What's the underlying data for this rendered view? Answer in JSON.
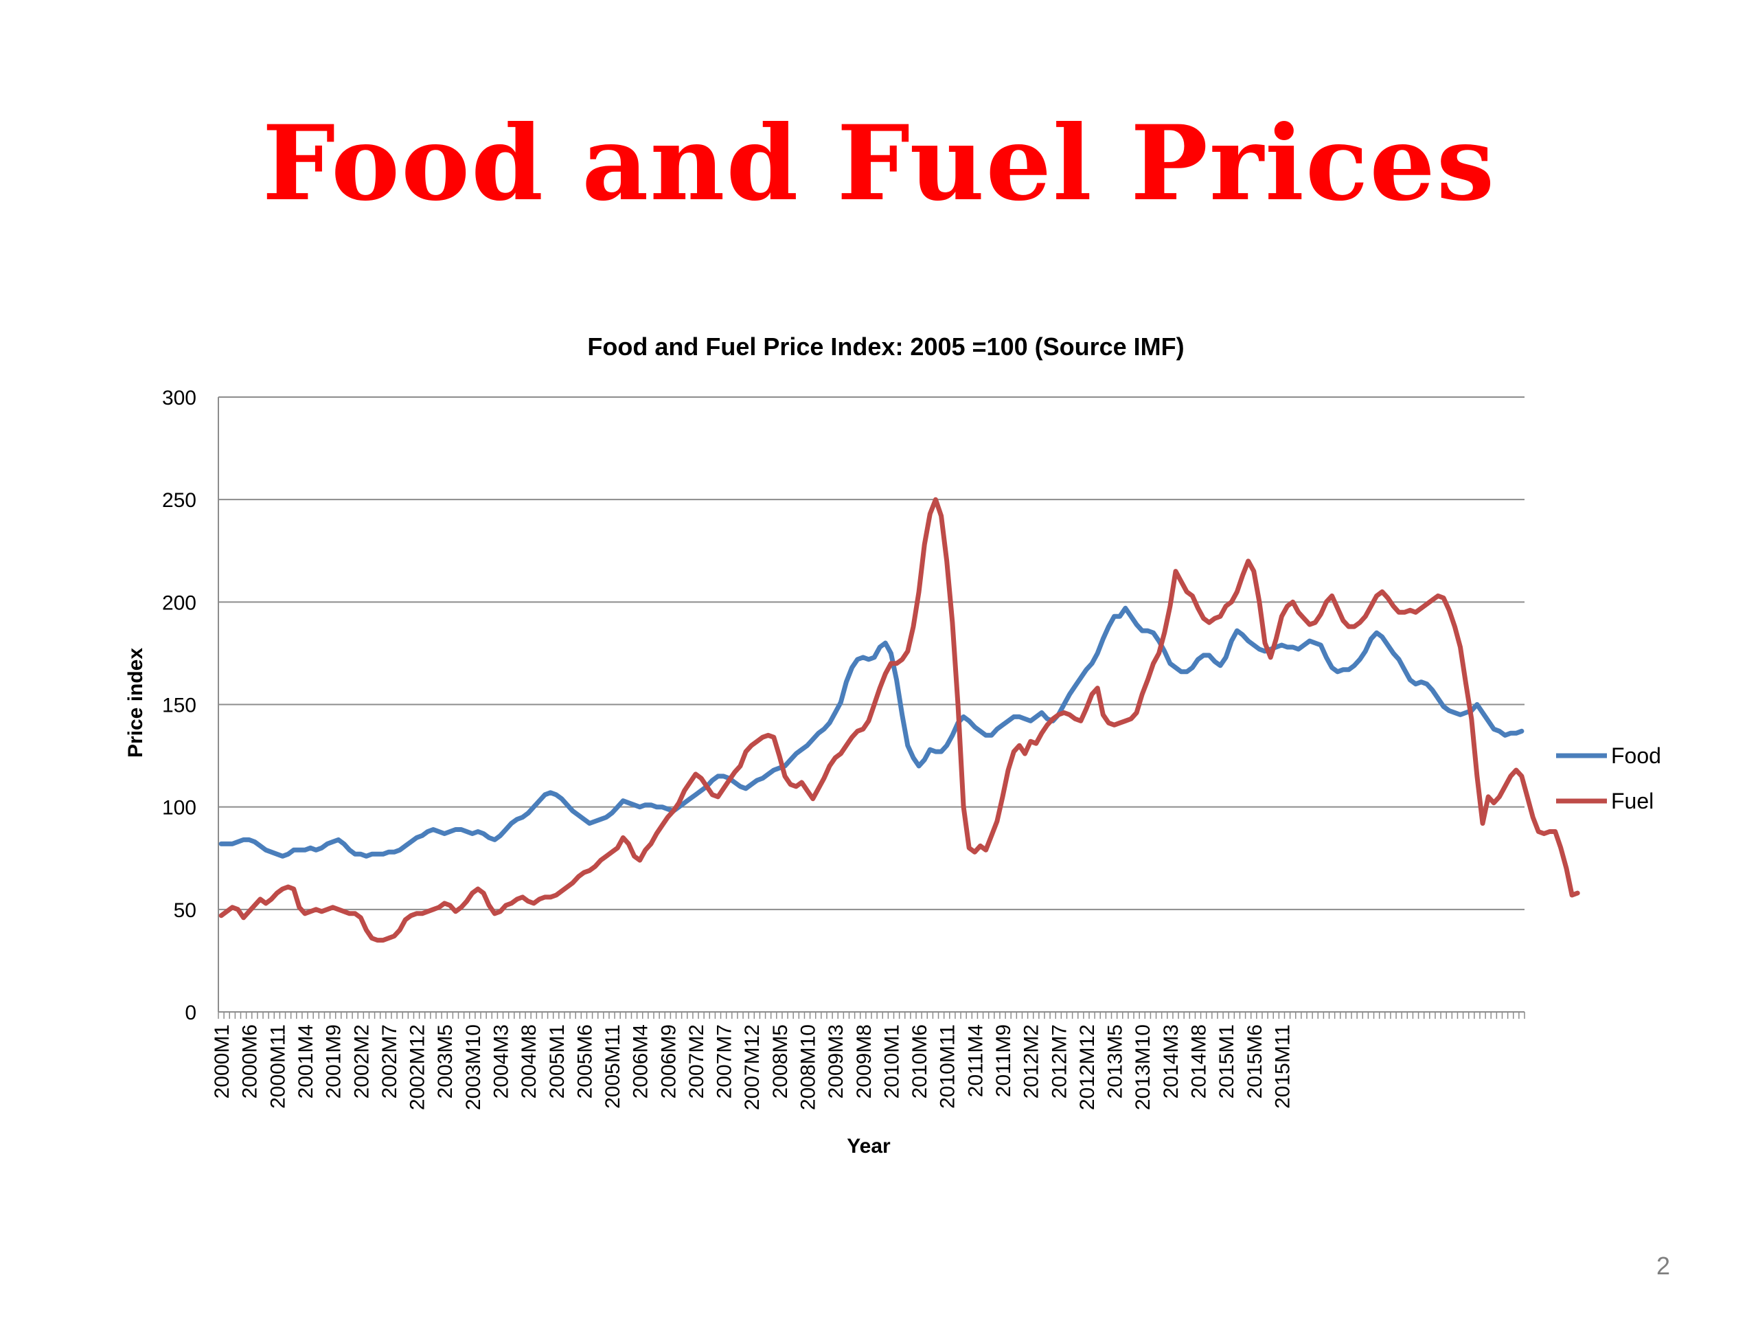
{
  "slide": {
    "title": "Food and Fuel Prices",
    "title_color": "#ff0000",
    "page_number": "2"
  },
  "chart_data": {
    "type": "line",
    "title": "Food and Fuel Price Index: 2005 =100 (Source IMF)",
    "xlabel": "Year",
    "ylabel": "Price index",
    "ylim": [
      0,
      300
    ],
    "yticks": [
      0,
      50,
      100,
      150,
      200,
      250,
      300
    ],
    "grid": true,
    "legend": "right",
    "x_start": "2000M1",
    "x_step_months": 1,
    "x_tick_labels": [
      "2000M1",
      "2000M6",
      "2000M11",
      "2001M4",
      "2001M9",
      "2002M2",
      "2002M7",
      "2002M12",
      "2003M5",
      "2003M10",
      "2004M3",
      "2004M8",
      "2005M1",
      "2005M6",
      "2005M11",
      "2006M4",
      "2006M9",
      "2007M2",
      "2007M7",
      "2007M12",
      "2008M5",
      "2008M10",
      "2009M3",
      "2009M8",
      "2010M1",
      "2010M6",
      "2010M11",
      "2011M4",
      "2011M9",
      "2012M2",
      "2012M7",
      "2012M12",
      "2013M5",
      "2013M10",
      "2014M3",
      "2014M8",
      "2015M1",
      "2015M6",
      "2015M11"
    ],
    "series": [
      {
        "name": "Food",
        "color": "#4a7ebb",
        "values": [
          82,
          82,
          82,
          83,
          84,
          84,
          83,
          81,
          79,
          78,
          77,
          76,
          77,
          79,
          79,
          79,
          80,
          79,
          80,
          82,
          83,
          84,
          82,
          79,
          77,
          77,
          76,
          77,
          77,
          77,
          78,
          78,
          79,
          81,
          83,
          85,
          86,
          88,
          89,
          88,
          87,
          88,
          89,
          89,
          88,
          87,
          88,
          87,
          85,
          84,
          86,
          89,
          92,
          94,
          95,
          97,
          100,
          103,
          106,
          107,
          106,
          104,
          101,
          98,
          96,
          94,
          92,
          93,
          94,
          95,
          97,
          100,
          103,
          102,
          101,
          100,
          101,
          101,
          100,
          100,
          99,
          98,
          100,
          102,
          104,
          106,
          108,
          110,
          113,
          115,
          115,
          114,
          112,
          110,
          109,
          111,
          113,
          114,
          116,
          118,
          119,
          120,
          123,
          126,
          128,
          130,
          133,
          136,
          138,
          141,
          146,
          151,
          161,
          168,
          172,
          173,
          172,
          173,
          178,
          180,
          175,
          162,
          145,
          130,
          124,
          120,
          123,
          128,
          127,
          127,
          130,
          135,
          141,
          144,
          142,
          139,
          137,
          135,
          135,
          138,
          140,
          142,
          144,
          144,
          143,
          142,
          144,
          146,
          143,
          142,
          145,
          150,
          155,
          159,
          163,
          167,
          170,
          175,
          182,
          188,
          193,
          193,
          197,
          193,
          189,
          186,
          186,
          185,
          181,
          176,
          170,
          168,
          166,
          166,
          168,
          172,
          174,
          174,
          171,
          169,
          173,
          181,
          186,
          184,
          181,
          179,
          177,
          176,
          177,
          178,
          179,
          178,
          178,
          177,
          179,
          181,
          180,
          179,
          173,
          168,
          166,
          167,
          167,
          169,
          172,
          176,
          182,
          185,
          183,
          179,
          175,
          172,
          167,
          162,
          160,
          161,
          160,
          157,
          153,
          149,
          147,
          146,
          145,
          146,
          147,
          150,
          146,
          142,
          138,
          137,
          135,
          136,
          136,
          137
        ]
      },
      {
        "name": "Fuel",
        "color": "#be4b48",
        "values": [
          47,
          49,
          51,
          50,
          46,
          49,
          52,
          55,
          53,
          55,
          58,
          60,
          61,
          60,
          51,
          48,
          49,
          50,
          49,
          50,
          51,
          50,
          49,
          48,
          48,
          46,
          40,
          36,
          35,
          35,
          36,
          37,
          40,
          45,
          47,
          48,
          48,
          49,
          50,
          51,
          53,
          52,
          49,
          51,
          54,
          58,
          60,
          58,
          52,
          48,
          49,
          52,
          53,
          55,
          56,
          54,
          53,
          55,
          56,
          56,
          57,
          59,
          61,
          63,
          66,
          68,
          69,
          71,
          74,
          76,
          78,
          80,
          85,
          82,
          76,
          74,
          79,
          82,
          87,
          91,
          95,
          98,
          102,
          108,
          112,
          116,
          114,
          110,
          106,
          105,
          109,
          113,
          117,
          120,
          127,
          130,
          132,
          134,
          135,
          134,
          125,
          115,
          111,
          110,
          112,
          108,
          104,
          109,
          114,
          120,
          124,
          126,
          130,
          134,
          137,
          138,
          142,
          150,
          158,
          165,
          170,
          170,
          172,
          176,
          188,
          205,
          228,
          243,
          250,
          242,
          220,
          190,
          150,
          100,
          80,
          78,
          81,
          79,
          86,
          93,
          105,
          118,
          127,
          130,
          126,
          132,
          131,
          136,
          140,
          143,
          145,
          146,
          145,
          143,
          142,
          148,
          155,
          158,
          145,
          141,
          140,
          141,
          142,
          143,
          146,
          155,
          162,
          170,
          175,
          185,
          198,
          215,
          210,
          205,
          203,
          197,
          192,
          190,
          192,
          193,
          198,
          200,
          205,
          213,
          220,
          215,
          200,
          180,
          173,
          182,
          193,
          198,
          200,
          195,
          192,
          189,
          190,
          194,
          200,
          203,
          197,
          191,
          188,
          188,
          190,
          193,
          198,
          203,
          205,
          202,
          198,
          195,
          195,
          196,
          195,
          197,
          199,
          201,
          203,
          202,
          196,
          188,
          178,
          160,
          143,
          115,
          92,
          105,
          102,
          105,
          110,
          115,
          118,
          115,
          105,
          95,
          88,
          87,
          88,
          88,
          80,
          70,
          57,
          58
        ]
      }
    ]
  }
}
